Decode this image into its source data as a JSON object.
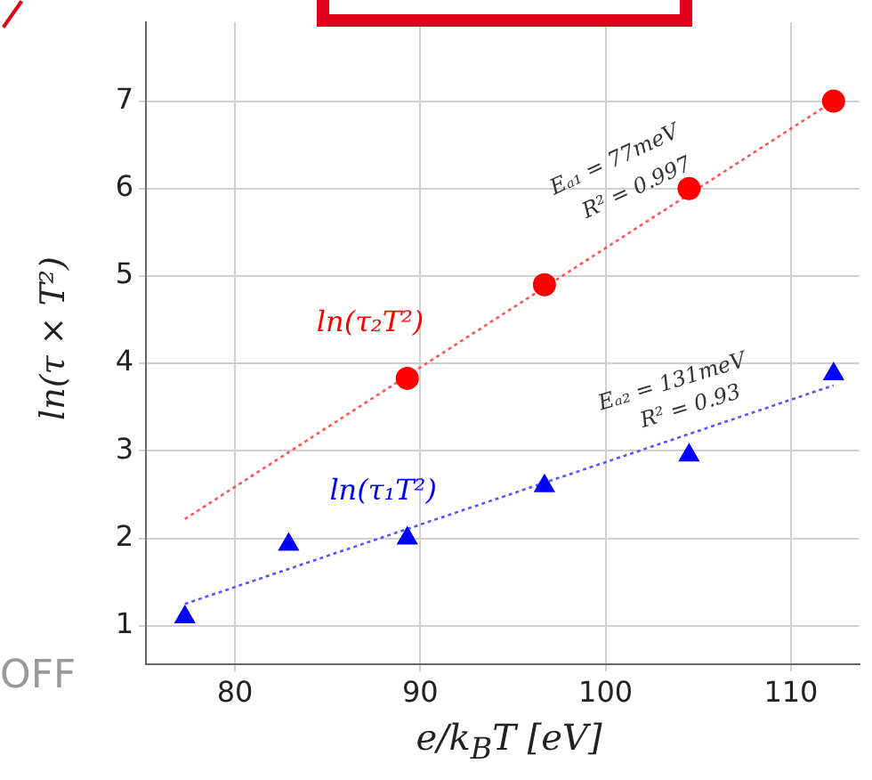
{
  "chart_data": {
    "type": "scatter",
    "xlabel": "e/k$_{B}$T [eV]",
    "ylabel": "ln(τ × T²)",
    "xlim": [
      75.2,
      113.7
    ],
    "xticks": [
      80,
      90,
      100,
      110
    ],
    "ylim": [
      0.56,
      7.9
    ],
    "yticks": [
      1,
      2,
      3,
      4,
      5,
      6,
      7
    ],
    "grid": true,
    "legend": false,
    "series": [
      {
        "name": "ln(τ₂T²)",
        "marker": "circle",
        "color": "#ff0000",
        "x": [
          89.3,
          96.7,
          104.5,
          112.3
        ],
        "values": [
          3.83,
          4.9,
          6.0,
          7.0
        ]
      },
      {
        "name": "ln(τ₁T²)",
        "marker": "triangle",
        "color": "#0000ff",
        "x": [
          77.3,
          82.9,
          89.3,
          96.7,
          104.5,
          112.3
        ],
        "values": [
          1.1,
          1.93,
          2.0,
          2.6,
          2.95,
          3.88
        ]
      },
      {
        "type": "line",
        "marker": "none",
        "line_style": "dotted",
        "color": "#ff5555",
        "x": [
          77.3,
          112.3
        ],
        "values": [
          2.22,
          7.0
        ]
      },
      {
        "type": "line",
        "marker": "none",
        "line_style": "dotted",
        "color": "#5555ff",
        "x": [
          77.3,
          112.3
        ],
        "values": [
          1.25,
          3.75
        ]
      }
    ],
    "annotations": [
      "Eₐ₁ = 77meV",
      "R² = 0.997",
      "Eₐ₂ = 131meV",
      "R² = 0.93",
      "OFF"
    ]
  }
}
